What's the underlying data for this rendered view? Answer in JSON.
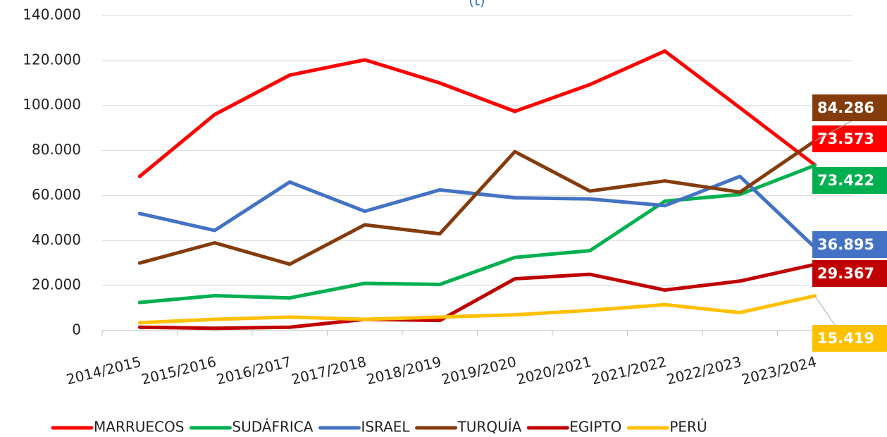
{
  "chart_data": {
    "type": "line",
    "title": "(t)",
    "categories": [
      "2014/2015",
      "2015/2016",
      "2016/2017",
      "2017/2018",
      "2018/2019",
      "2019/2020",
      "2020/2021",
      "2021/2022",
      "2022/2023",
      "2023/2024"
    ],
    "series": [
      {
        "name": "MARRUECOS",
        "color": "#ff0000",
        "values": [
          68500,
          96000,
          113500,
          120300,
          110000,
          97400,
          109300,
          124200,
          99000,
          73573
        ],
        "value_labels": [
          null,
          null,
          null,
          null,
          null,
          null,
          null,
          null,
          null,
          "73.573"
        ]
      },
      {
        "name": "SUDÁFRICA",
        "color": "#00b050",
        "values": [
          12500,
          15500,
          14500,
          21000,
          20500,
          32500,
          35500,
          57500,
          60500,
          73422
        ],
        "value_labels": [
          null,
          null,
          null,
          null,
          null,
          null,
          null,
          null,
          null,
          "73.422"
        ]
      },
      {
        "name": "ISRAEL",
        "color": "#4472c4",
        "values": [
          52000,
          44500,
          66000,
          53000,
          62500,
          59000,
          58500,
          55500,
          68500,
          36895
        ],
        "value_labels": [
          null,
          null,
          null,
          null,
          null,
          null,
          null,
          null,
          null,
          "36.895"
        ]
      },
      {
        "name": "TURQUÍA",
        "color": "#843c0c",
        "values": [
          30000,
          39000,
          29500,
          47000,
          43000,
          79500,
          62000,
          66500,
          61500,
          84286
        ],
        "value_labels": [
          null,
          null,
          null,
          null,
          null,
          null,
          null,
          null,
          null,
          "84.286"
        ]
      },
      {
        "name": "EGIPTO",
        "color": "#c00000",
        "values": [
          1500,
          1000,
          1500,
          5000,
          4500,
          23000,
          25000,
          18000,
          22000,
          29367
        ],
        "value_labels": [
          null,
          null,
          null,
          null,
          null,
          null,
          null,
          null,
          null,
          "29.367"
        ]
      },
      {
        "name": "PERÚ",
        "color": "#ffc000",
        "values": [
          3500,
          5000,
          6000,
          5000,
          6000,
          7000,
          9000,
          11500,
          8000,
          15419
        ],
        "value_labels": [
          null,
          null,
          null,
          null,
          null,
          null,
          null,
          null,
          null,
          "15.419"
        ]
      }
    ],
    "ylim": [
      0,
      140000
    ],
    "yticks": [
      0,
      {
        "value": 20000,
        "label": "20.000"
      },
      {
        "value": 40000,
        "label": "40.000"
      },
      {
        "value": 60000,
        "label": "60.000"
      },
      {
        "value": 80000,
        "label": "80.000"
      },
      {
        "value": 100000,
        "label": "100.000"
      },
      {
        "value": 120000,
        "label": "120.000"
      },
      {
        "value": 140000,
        "label": "140.000"
      }
    ],
    "grid": true,
    "legend": "bottom"
  }
}
